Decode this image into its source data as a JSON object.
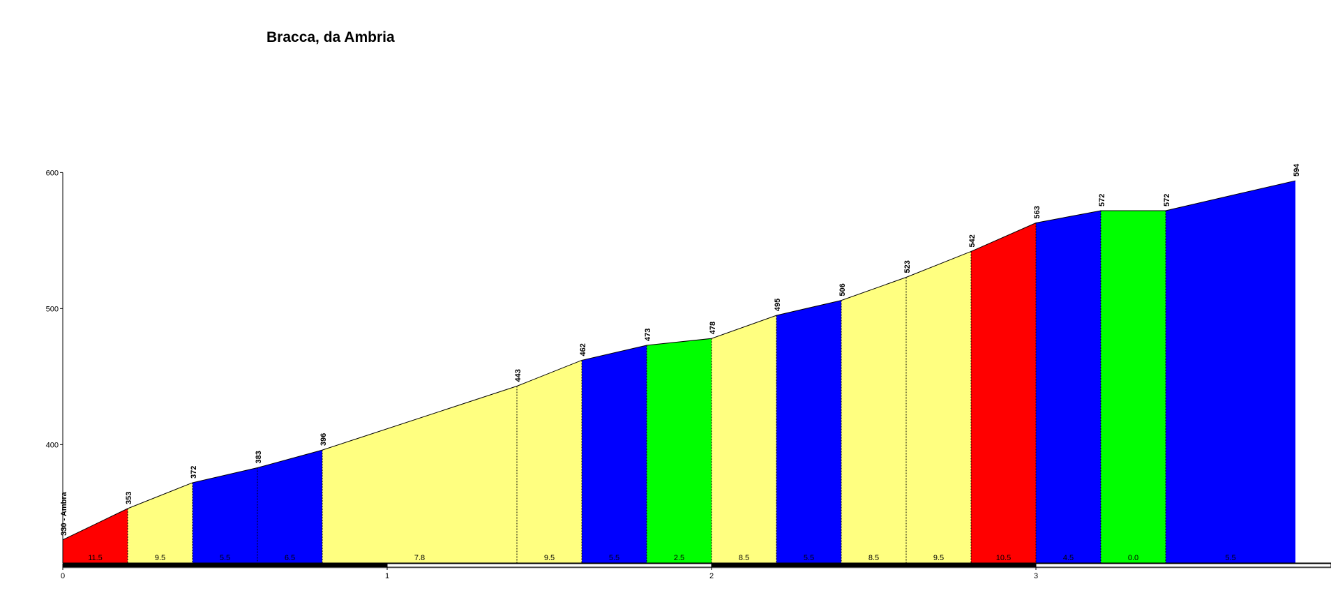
{
  "chart_data": {
    "type": "area",
    "title": "Bracca, da Ambria",
    "xlabel": "",
    "ylabel": "",
    "xlim": [
      0,
      3.9
    ],
    "ylim": [
      313,
      600
    ],
    "x_ticks": [
      "0",
      "1",
      "2",
      "3"
    ],
    "y_ticks": [
      "400",
      "500",
      "600"
    ],
    "grid": false,
    "legend": "none",
    "distance": [
      0,
      0.2,
      0.4,
      0.6,
      0.8,
      1.4,
      1.6,
      1.8,
      2.0,
      2.2,
      2.4,
      2.6,
      2.8,
      3.0,
      3.2,
      3.4,
      3.8
    ],
    "elevation": [
      330,
      353,
      372,
      383,
      396,
      443,
      462,
      473,
      478,
      495,
      506,
      523,
      542,
      563,
      572,
      572,
      594
    ],
    "point_labels": [
      "330 - Ambra",
      "353",
      "372",
      "383",
      "396",
      "443",
      "462",
      "473",
      "478",
      "495",
      "506",
      "523",
      "542",
      "563",
      "572",
      "572",
      "594"
    ],
    "segment_gradients": [
      "11.5",
      "9.5",
      "5.5",
      "6.5",
      "7.8",
      "9.5",
      "5.5",
      "2.5",
      "8.5",
      "5.5",
      "8.5",
      "9.5",
      "10.5",
      "4.5",
      "0.0",
      "5.5"
    ],
    "segment_colors": [
      "#ff0000",
      "#ffff80",
      "#0000ff",
      "#0000ff",
      "#ffff80",
      "#ffff80",
      "#0000ff",
      "#00ff00",
      "#ffff80",
      "#0000ff",
      "#ffff80",
      "#ffff80",
      "#ff0000",
      "#0000ff",
      "#00ff00",
      "#0000ff"
    ]
  }
}
